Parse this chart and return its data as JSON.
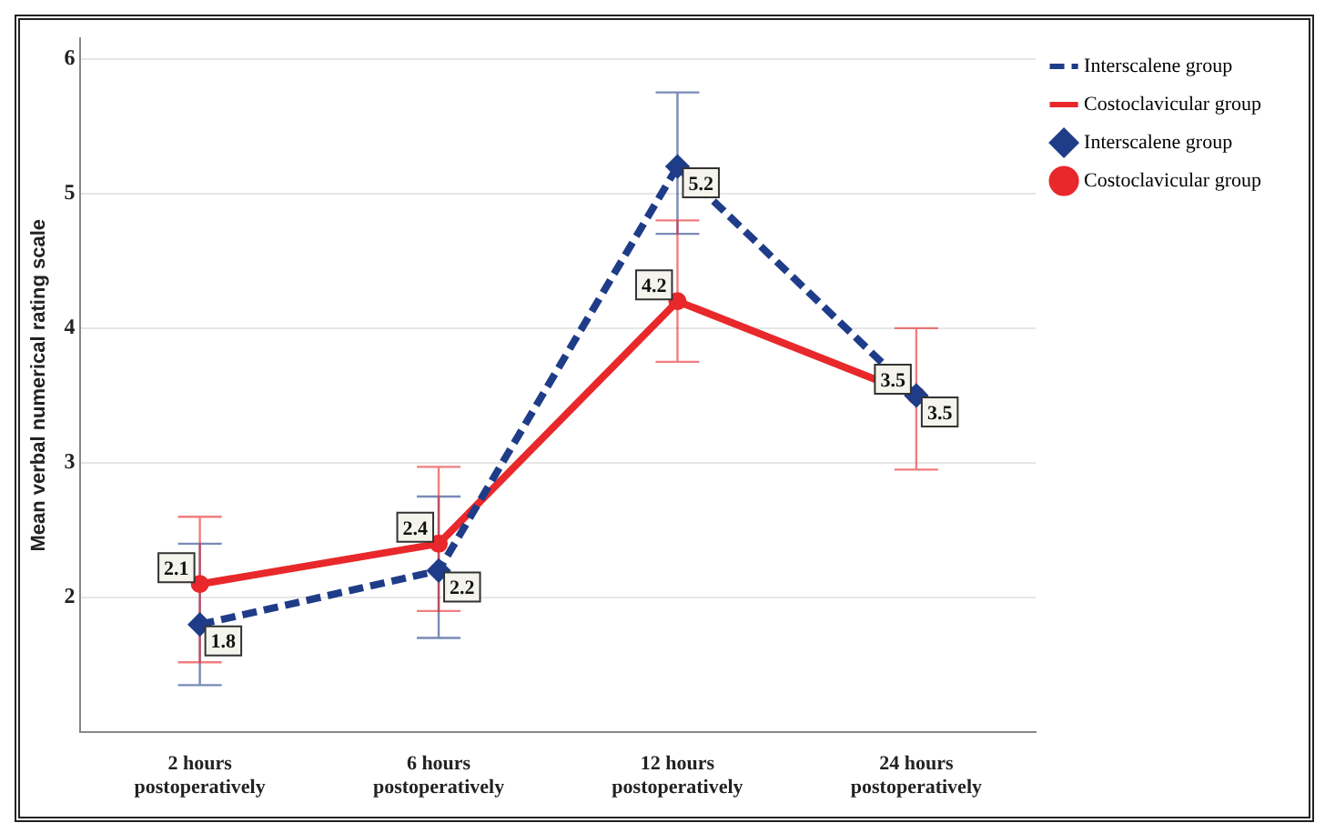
{
  "chart_data": {
    "type": "line",
    "ylabel": "Mean verbal numerical rating scale",
    "categories": [
      "2 hours postoperatively",
      "6 hours postoperatively",
      "12 hours postoperatively",
      "24 hours postoperatively"
    ],
    "series": [
      {
        "name": "Interscalene group",
        "color": "#1f3c88",
        "line_style": "dashed",
        "marker": "diamond",
        "values": [
          1.8,
          2.2,
          5.2,
          3.5
        ],
        "errors": [
          [
            1.35,
            2.4
          ],
          [
            1.7,
            2.75
          ],
          [
            4.7,
            5.75
          ],
          null
        ]
      },
      {
        "name": "Costoclavicular group",
        "color": "#e8282b",
        "line_style": "solid",
        "marker": "circle",
        "values": [
          2.1,
          2.4,
          4.2,
          3.5
        ],
        "errors": [
          [
            1.52,
            2.6
          ],
          [
            1.9,
            2.97
          ],
          [
            3.75,
            4.8
          ],
          [
            2.95,
            4.0
          ]
        ]
      }
    ],
    "ylim": [
      1,
      6.15
    ],
    "yticks": [
      2,
      3,
      4,
      5,
      6
    ],
    "grid": "y",
    "legend": "top right",
    "data_labels": true
  }
}
